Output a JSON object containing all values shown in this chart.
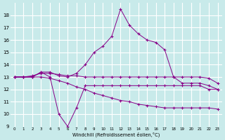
{
  "xlabel": "Windchill (Refroidissement éolien,°C)",
  "x": [
    0,
    1,
    2,
    3,
    4,
    5,
    6,
    7,
    8,
    9,
    10,
    11,
    12,
    13,
    14,
    15,
    16,
    17,
    18,
    19,
    20,
    21,
    22,
    23
  ],
  "line1": [
    13.0,
    13.0,
    13.0,
    13.4,
    13.4,
    13.1,
    13.0,
    13.3,
    14.0,
    15.0,
    15.5,
    16.3,
    18.5,
    17.2,
    16.5,
    16.0,
    15.8,
    15.2,
    13.0,
    12.5,
    12.5,
    12.5,
    12.3,
    12.0
  ],
  "line2": [
    13.0,
    13.0,
    13.0,
    13.4,
    13.0,
    10.0,
    9.0,
    10.5,
    12.3,
    12.3,
    12.3,
    12.3,
    12.3,
    12.3,
    12.3,
    12.3,
    12.3,
    12.3,
    12.3,
    12.3,
    12.3,
    12.3,
    12.0,
    12.0
  ],
  "line3": [
    13.0,
    13.0,
    13.1,
    13.3,
    13.3,
    13.2,
    13.1,
    13.1,
    13.0,
    13.0,
    13.0,
    13.0,
    13.0,
    13.0,
    13.0,
    13.0,
    13.0,
    13.0,
    13.0,
    13.0,
    13.0,
    13.0,
    12.9,
    12.5
  ],
  "line4": [
    13.0,
    13.0,
    13.0,
    13.0,
    12.9,
    12.7,
    12.5,
    12.2,
    12.0,
    11.7,
    11.5,
    11.3,
    11.1,
    11.0,
    10.8,
    10.7,
    10.6,
    10.5,
    10.5,
    10.5,
    10.5,
    10.5,
    10.5,
    10.4
  ],
  "line_color": "#880088",
  "bg_color": "#c8eaea",
  "grid_color": "#ffffff",
  "ylim": [
    9,
    19
  ],
  "xlim": [
    -0.5,
    23.5
  ],
  "yticks": [
    9,
    10,
    11,
    12,
    13,
    14,
    15,
    16,
    17,
    18
  ],
  "xticks": [
    0,
    1,
    2,
    3,
    4,
    5,
    6,
    7,
    8,
    9,
    10,
    11,
    12,
    13,
    14,
    15,
    16,
    17,
    18,
    19,
    20,
    21,
    22,
    23
  ]
}
